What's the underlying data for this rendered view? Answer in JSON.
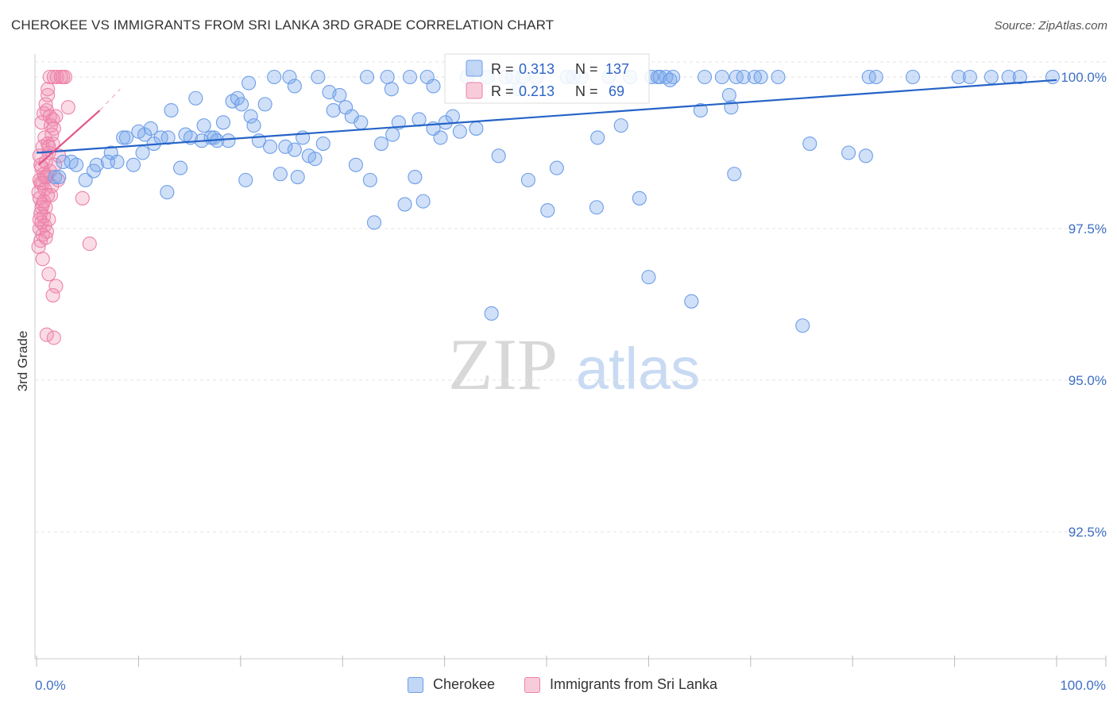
{
  "title": "CHEROKEE VS IMMIGRANTS FROM SRI LANKA 3RD GRADE CORRELATION CHART",
  "source": "Source: ZipAtlas.com",
  "watermark": {
    "zip": "ZIP",
    "atlas": "atlas"
  },
  "colors": {
    "blue": "#6d9ee8",
    "blue_fill": "rgba(120,165,235,0.35)",
    "blue_line": "#2563c7",
    "pink": "#ee82a8",
    "pink_fill": "rgba(240,140,175,0.30)",
    "pink_line": "#e0558a",
    "tick": "#3d6fc4",
    "grid": "#e3e3e3"
  },
  "legend": {
    "rows": [
      {
        "r_label": "R =",
        "r_value": "0.313",
        "n_label": "N =",
        "n_value": "137"
      },
      {
        "r_label": "R =",
        "r_value": "0.213",
        "n_label": "N =",
        "n_value": "69"
      }
    ]
  },
  "bottom_legend": {
    "series1": "Cherokee",
    "series2": "Immigrants from Sri Lanka"
  },
  "chart_data": {
    "type": "scatter",
    "title": "CHEROKEE VS IMMIGRANTS FROM SRI LANKA 3RD GRADE CORRELATION CHART",
    "xlabel": "",
    "ylabel": "3rd Grade",
    "xlim": [
      0,
      100
    ],
    "ylim": [
      90.1,
      100.25
    ],
    "x_tick_labels": [
      "0.0%",
      "100.0%"
    ],
    "y_ticks": [
      {
        "value": 100.0,
        "label": "100.0%"
      },
      {
        "value": 97.5,
        "label": "97.5%"
      },
      {
        "value": 95.0,
        "label": "95.0%"
      },
      {
        "value": 92.5,
        "label": "92.5%"
      }
    ],
    "series": [
      {
        "name": "Cherokee",
        "R": 0.313,
        "N": 137,
        "trend": {
          "x": [
            0,
            100
          ],
          "y": [
            98.75,
            99.95
          ]
        },
        "points": [
          [
            1.8,
            98.35
          ],
          [
            2.6,
            98.6
          ],
          [
            3.4,
            98.6
          ],
          [
            3.9,
            98.55
          ],
          [
            4.8,
            98.3
          ],
          [
            5.6,
            98.45
          ],
          [
            5.9,
            98.55
          ],
          [
            7.0,
            98.6
          ],
          [
            7.3,
            98.75
          ],
          [
            7.9,
            98.6
          ],
          [
            8.5,
            99.0
          ],
          [
            8.8,
            99.0
          ],
          [
            9.5,
            98.55
          ],
          [
            10.0,
            99.1
          ],
          [
            10.4,
            98.75
          ],
          [
            10.6,
            99.05
          ],
          [
            11.2,
            99.15
          ],
          [
            11.5,
            98.9
          ],
          [
            12.2,
            99.0
          ],
          [
            12.8,
            98.1
          ],
          [
            13.2,
            99.45
          ],
          [
            14.1,
            98.5
          ],
          [
            14.6,
            99.05
          ],
          [
            15.1,
            99.0
          ],
          [
            15.6,
            99.65
          ],
          [
            16.2,
            98.95
          ],
          [
            16.4,
            99.2
          ],
          [
            17.1,
            99.0
          ],
          [
            17.4,
            99.0
          ],
          [
            17.7,
            98.95
          ],
          [
            18.3,
            99.25
          ],
          [
            18.8,
            98.95
          ],
          [
            19.2,
            99.6
          ],
          [
            19.7,
            99.65
          ],
          [
            20.1,
            99.55
          ],
          [
            20.5,
            98.3
          ],
          [
            21.0,
            99.35
          ],
          [
            21.3,
            99.2
          ],
          [
            21.8,
            98.95
          ],
          [
            22.4,
            99.55
          ],
          [
            22.9,
            98.85
          ],
          [
            23.3,
            100.0
          ],
          [
            23.9,
            98.4
          ],
          [
            24.4,
            98.85
          ],
          [
            24.8,
            100.0
          ],
          [
            25.3,
            98.8
          ],
          [
            25.6,
            98.35
          ],
          [
            26.1,
            99.0
          ],
          [
            26.7,
            98.7
          ],
          [
            27.3,
            98.65
          ],
          [
            27.6,
            100.0
          ],
          [
            28.1,
            98.9
          ],
          [
            28.7,
            99.75
          ],
          [
            29.1,
            99.45
          ],
          [
            29.7,
            99.7
          ],
          [
            30.3,
            99.5
          ],
          [
            30.9,
            99.35
          ],
          [
            31.3,
            98.55
          ],
          [
            31.8,
            99.25
          ],
          [
            32.4,
            100.0
          ],
          [
            32.7,
            98.3
          ],
          [
            33.1,
            97.6
          ],
          [
            33.8,
            98.9
          ],
          [
            34.4,
            100.0
          ],
          [
            34.9,
            99.05
          ],
          [
            35.5,
            99.25
          ],
          [
            36.1,
            97.9
          ],
          [
            36.6,
            100.0
          ],
          [
            37.1,
            98.35
          ],
          [
            37.5,
            99.3
          ],
          [
            37.9,
            97.95
          ],
          [
            38.3,
            100.0
          ],
          [
            38.9,
            99.15
          ],
          [
            39.6,
            99.0
          ],
          [
            40.1,
            99.25
          ],
          [
            40.8,
            99.35
          ],
          [
            41.5,
            99.1
          ],
          [
            42.2,
            100.0
          ],
          [
            43.1,
            99.15
          ],
          [
            44.2,
            100.0
          ],
          [
            45.3,
            98.7
          ],
          [
            46.0,
            100.0
          ],
          [
            46.7,
            100.0
          ],
          [
            47.7,
            100.0
          ],
          [
            48.2,
            98.3
          ],
          [
            49.0,
            100.0
          ],
          [
            50.1,
            97.8
          ],
          [
            51.0,
            98.5
          ],
          [
            52.0,
            100.0
          ],
          [
            52.6,
            100.0
          ],
          [
            53.4,
            100.0
          ],
          [
            55.0,
            99.0
          ],
          [
            56.1,
            100.0
          ],
          [
            57.3,
            99.2
          ],
          [
            58.2,
            100.0
          ],
          [
            59.1,
            98.0
          ],
          [
            60.0,
            96.7
          ],
          [
            60.3,
            100.0
          ],
          [
            60.9,
            100.0
          ],
          [
            61.1,
            100.0
          ],
          [
            61.7,
            100.0
          ],
          [
            62.4,
            100.0
          ],
          [
            64.2,
            96.3
          ],
          [
            65.1,
            99.45
          ],
          [
            65.5,
            100.0
          ],
          [
            67.2,
            100.0
          ],
          [
            68.1,
            99.5
          ],
          [
            68.4,
            98.4
          ],
          [
            68.6,
            100.0
          ],
          [
            69.3,
            100.0
          ],
          [
            70.4,
            100.0
          ],
          [
            71.0,
            100.0
          ],
          [
            72.7,
            100.0
          ],
          [
            75.8,
            98.9
          ],
          [
            75.1,
            95.9
          ],
          [
            79.6,
            98.75
          ],
          [
            81.3,
            98.7
          ],
          [
            81.6,
            100.0
          ],
          [
            82.3,
            100.0
          ],
          [
            85.9,
            100.0
          ],
          [
            90.4,
            100.0
          ],
          [
            91.5,
            100.0
          ],
          [
            93.6,
            100.0
          ],
          [
            95.3,
            100.0
          ],
          [
            96.4,
            100.0
          ],
          [
            99.6,
            100.0
          ],
          [
            2.2,
            98.35
          ],
          [
            44.6,
            96.1
          ],
          [
            54.9,
            97.85
          ],
          [
            12.9,
            99.0
          ],
          [
            25.3,
            99.85
          ],
          [
            38.9,
            99.85
          ],
          [
            47.3,
            99.8
          ],
          [
            62.1,
            99.95
          ],
          [
            34.8,
            99.8
          ],
          [
            20.8,
            99.9
          ],
          [
            67.9,
            99.7
          ]
        ]
      },
      {
        "name": "Immigrants from Sri Lanka",
        "R": 0.213,
        "N": 69,
        "trend": {
          "x": [
            0.2,
            6.2
          ],
          "y": [
            98.55,
            99.45
          ]
        },
        "trend_dashed": {
          "x": [
            6.2,
            8.2
          ],
          "y": [
            99.45,
            99.8
          ]
        },
        "points": [
          [
            1.3,
            100.0
          ],
          [
            1.7,
            100.0
          ],
          [
            2.0,
            100.0
          ],
          [
            2.4,
            100.0
          ],
          [
            2.6,
            100.0
          ],
          [
            1.1,
            99.7
          ],
          [
            3.1,
            99.5
          ],
          [
            0.7,
            99.4
          ],
          [
            1.0,
            99.45
          ],
          [
            1.3,
            99.35
          ],
          [
            1.6,
            99.3
          ],
          [
            1.4,
            99.2
          ],
          [
            1.7,
            99.15
          ],
          [
            0.8,
            99.0
          ],
          [
            1.1,
            98.9
          ],
          [
            0.6,
            98.85
          ],
          [
            1.2,
            98.75
          ],
          [
            2.2,
            98.7
          ],
          [
            0.9,
            98.6
          ],
          [
            0.5,
            98.5
          ],
          [
            1.3,
            98.45
          ],
          [
            0.7,
            98.4
          ],
          [
            1.0,
            98.35
          ],
          [
            2.1,
            98.3
          ],
          [
            0.4,
            98.25
          ],
          [
            1.5,
            98.2
          ],
          [
            0.8,
            98.15
          ],
          [
            1.1,
            98.05
          ],
          [
            0.3,
            98.0
          ],
          [
            4.5,
            98.0
          ],
          [
            0.6,
            97.9
          ],
          [
            0.9,
            97.85
          ],
          [
            0.4,
            97.75
          ],
          [
            0.7,
            97.7
          ],
          [
            1.2,
            97.65
          ],
          [
            0.5,
            97.6
          ],
          [
            0.8,
            97.55
          ],
          [
            0.3,
            97.5
          ],
          [
            1.0,
            97.45
          ],
          [
            0.6,
            97.4
          ],
          [
            0.4,
            97.3
          ],
          [
            0.2,
            97.2
          ],
          [
            0.6,
            97.0
          ],
          [
            5.2,
            97.25
          ],
          [
            1.2,
            96.75
          ],
          [
            1.9,
            96.55
          ],
          [
            1.6,
            96.4
          ],
          [
            1.0,
            95.75
          ],
          [
            1.7,
            95.7
          ],
          [
            0.9,
            99.55
          ],
          [
            1.5,
            99.05
          ],
          [
            0.5,
            99.25
          ],
          [
            0.3,
            98.7
          ],
          [
            1.8,
            98.55
          ],
          [
            0.2,
            98.1
          ],
          [
            1.4,
            98.05
          ],
          [
            0.7,
            97.95
          ],
          [
            0.3,
            97.65
          ],
          [
            0.9,
            97.35
          ],
          [
            1.1,
            99.8
          ],
          [
            2.8,
            100.0
          ],
          [
            0.6,
            98.25
          ],
          [
            1.9,
            99.35
          ],
          [
            0.4,
            98.55
          ],
          [
            1.2,
            98.85
          ],
          [
            0.8,
            98.35
          ],
          [
            0.5,
            97.85
          ],
          [
            1.6,
            98.9
          ],
          [
            0.3,
            98.3
          ]
        ]
      }
    ]
  }
}
